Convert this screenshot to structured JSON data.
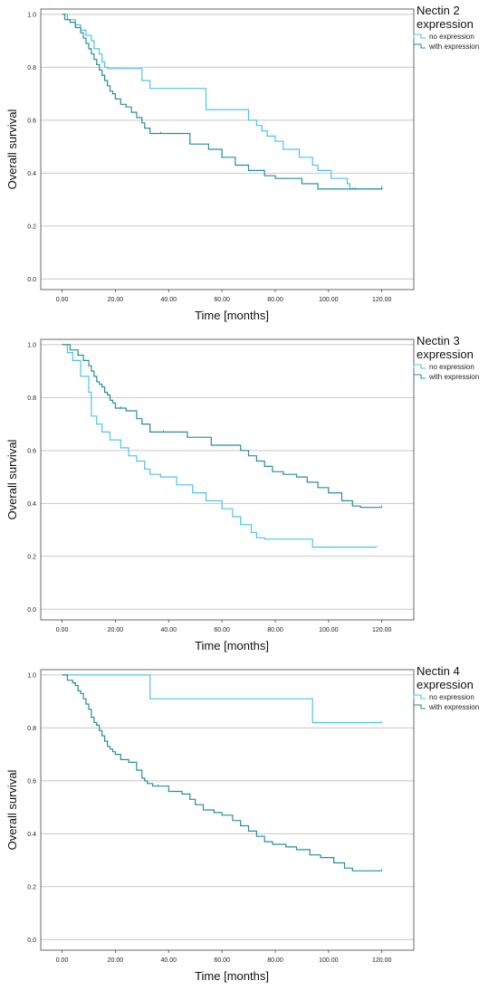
{
  "colors": {
    "no_expression": "#4fc3e8",
    "with_expression": "#2a8d9c",
    "gridline": "#c8c8c8",
    "frame": "#444444"
  },
  "chart_data": [
    {
      "type": "line",
      "step": true,
      "legend_title": [
        "Nectin 2",
        "expression"
      ],
      "legend_position": "right",
      "xlabel": "Time [months]",
      "ylabel": "Overall survival",
      "xlim": [
        -8,
        132
      ],
      "ylim": [
        -0.04,
        1.02
      ],
      "x_ticks": [
        0,
        20,
        40,
        60,
        80,
        100,
        120
      ],
      "x_tick_labels": [
        "0.00",
        "20.00",
        "40.00",
        "60.00",
        "80.00",
        "100.00",
        "120.00"
      ],
      "y_ticks": [
        0,
        0.2,
        0.4,
        0.6,
        0.8,
        1.0
      ],
      "y_tick_labels": [
        "0.0",
        "0.2",
        "0.4",
        "0.6",
        "0.8",
        "1.0"
      ],
      "grid": "horizontal",
      "series": [
        {
          "name": "no expression",
          "color_key": "no_expression",
          "x": [
            0,
            2,
            5,
            7,
            9,
            11,
            12,
            14,
            15,
            16,
            17,
            30,
            33,
            54,
            70,
            73,
            75,
            77,
            80,
            83,
            89,
            94,
            96,
            101,
            107,
            108,
            109,
            120
          ],
          "y": [
            1.0,
            0.98,
            0.96,
            0.94,
            0.92,
            0.9,
            0.87,
            0.85,
            0.82,
            0.8,
            0.795,
            0.75,
            0.72,
            0.64,
            0.6,
            0.58,
            0.56,
            0.54,
            0.52,
            0.49,
            0.46,
            0.43,
            0.41,
            0.38,
            0.36,
            0.34,
            0.34,
            0.345
          ]
        },
        {
          "name": "with expression",
          "color_key": "with_expression",
          "x": [
            0,
            1,
            3,
            5,
            7,
            8,
            9,
            10,
            11,
            12,
            13,
            14,
            15,
            16,
            17,
            18,
            19,
            20,
            22,
            24,
            26,
            28,
            30,
            31,
            33,
            37,
            48,
            55,
            60,
            65,
            70,
            76,
            80,
            90,
            96,
            110,
            120
          ],
          "y": [
            1.0,
            0.98,
            0.97,
            0.95,
            0.93,
            0.91,
            0.89,
            0.87,
            0.85,
            0.83,
            0.81,
            0.79,
            0.77,
            0.75,
            0.73,
            0.71,
            0.7,
            0.68,
            0.66,
            0.65,
            0.63,
            0.61,
            0.59,
            0.57,
            0.55,
            0.55,
            0.51,
            0.49,
            0.46,
            0.43,
            0.41,
            0.39,
            0.38,
            0.36,
            0.34,
            0.34,
            0.345
          ]
        }
      ]
    },
    {
      "type": "line",
      "step": true,
      "legend_title": [
        "Nectin 3",
        "expression"
      ],
      "legend_position": "right",
      "xlabel": "Time [months]",
      "ylabel": "Overall survival",
      "xlim": [
        -8,
        132
      ],
      "ylim": [
        -0.04,
        1.02
      ],
      "x_ticks": [
        0,
        20,
        40,
        60,
        80,
        100,
        120
      ],
      "x_tick_labels": [
        "0.00",
        "20.00",
        "40.00",
        "60.00",
        "80.00",
        "100.00",
        "120.00"
      ],
      "y_ticks": [
        0,
        0.2,
        0.4,
        0.6,
        0.8,
        1.0
      ],
      "y_tick_labels": [
        "0.0",
        "0.2",
        "0.4",
        "0.6",
        "0.8",
        "1.0"
      ],
      "grid": "horizontal",
      "series": [
        {
          "name": "no expression",
          "color_key": "no_expression",
          "x": [
            0,
            2,
            4,
            7,
            10,
            11,
            13,
            15,
            18,
            22,
            25,
            28,
            31,
            33,
            37,
            43,
            49,
            54,
            60,
            64,
            67,
            71,
            73,
            76,
            94,
            118
          ],
          "y": [
            1.0,
            0.97,
            0.94,
            0.88,
            0.82,
            0.73,
            0.7,
            0.67,
            0.64,
            0.61,
            0.58,
            0.56,
            0.53,
            0.51,
            0.5,
            0.47,
            0.44,
            0.41,
            0.38,
            0.35,
            0.32,
            0.29,
            0.27,
            0.265,
            0.235,
            0.235
          ]
        },
        {
          "name": "with expression",
          "color_key": "with_expression",
          "x": [
            0,
            3,
            6,
            8,
            10,
            11,
            12,
            13,
            14,
            15,
            16,
            17,
            18,
            19,
            20,
            22,
            24,
            28,
            30,
            33,
            38,
            47,
            56,
            67,
            70,
            73,
            76,
            79,
            83,
            88,
            92,
            96,
            100,
            105,
            109,
            112,
            120
          ],
          "y": [
            1.0,
            0.98,
            0.96,
            0.94,
            0.92,
            0.9,
            0.88,
            0.86,
            0.85,
            0.84,
            0.82,
            0.81,
            0.79,
            0.78,
            0.76,
            0.76,
            0.75,
            0.72,
            0.7,
            0.67,
            0.67,
            0.65,
            0.62,
            0.6,
            0.58,
            0.56,
            0.54,
            0.52,
            0.51,
            0.5,
            0.48,
            0.46,
            0.44,
            0.41,
            0.39,
            0.385,
            0.385
          ]
        }
      ]
    },
    {
      "type": "line",
      "step": true,
      "legend_title": [
        "Nectin 4",
        "expression"
      ],
      "legend_position": "right",
      "xlabel": "Time [months]",
      "ylabel": "Overall survival",
      "xlim": [
        -8,
        132
      ],
      "ylim": [
        -0.04,
        1.02
      ],
      "x_ticks": [
        0,
        20,
        40,
        60,
        80,
        100,
        120
      ],
      "x_tick_labels": [
        "0.00",
        "20.00",
        "40.00",
        "60.00",
        "80.00",
        "100.00",
        "120.00"
      ],
      "y_ticks": [
        0,
        0.2,
        0.4,
        0.6,
        0.8,
        1.0
      ],
      "y_tick_labels": [
        "0.0",
        "0.2",
        "0.4",
        "0.6",
        "0.8",
        "1.0"
      ],
      "grid": "horizontal",
      "series": [
        {
          "name": "no expression",
          "color_key": "no_expression",
          "x": [
            0,
            33,
            94,
            120
          ],
          "y": [
            1.0,
            0.91,
            0.82,
            0.82
          ]
        },
        {
          "name": "with expression",
          "color_key": "with_expression",
          "x": [
            0,
            2,
            4,
            5,
            6,
            7,
            8,
            9,
            10,
            11,
            12,
            13,
            14,
            15,
            16,
            17,
            18,
            19,
            20,
            22,
            25,
            28,
            30,
            31,
            32,
            34,
            36,
            40,
            45,
            48,
            50,
            53,
            57,
            60,
            64,
            67,
            70,
            73,
            76,
            79,
            84,
            88,
            93,
            97,
            102,
            106,
            109,
            120
          ],
          "y": [
            1.0,
            0.98,
            0.97,
            0.96,
            0.94,
            0.93,
            0.91,
            0.89,
            0.87,
            0.84,
            0.82,
            0.81,
            0.79,
            0.77,
            0.75,
            0.73,
            0.72,
            0.71,
            0.7,
            0.68,
            0.67,
            0.64,
            0.61,
            0.6,
            0.59,
            0.58,
            0.58,
            0.56,
            0.55,
            0.53,
            0.51,
            0.49,
            0.48,
            0.47,
            0.45,
            0.43,
            0.41,
            0.39,
            0.37,
            0.36,
            0.35,
            0.34,
            0.32,
            0.31,
            0.29,
            0.27,
            0.26,
            0.26
          ]
        }
      ]
    }
  ]
}
